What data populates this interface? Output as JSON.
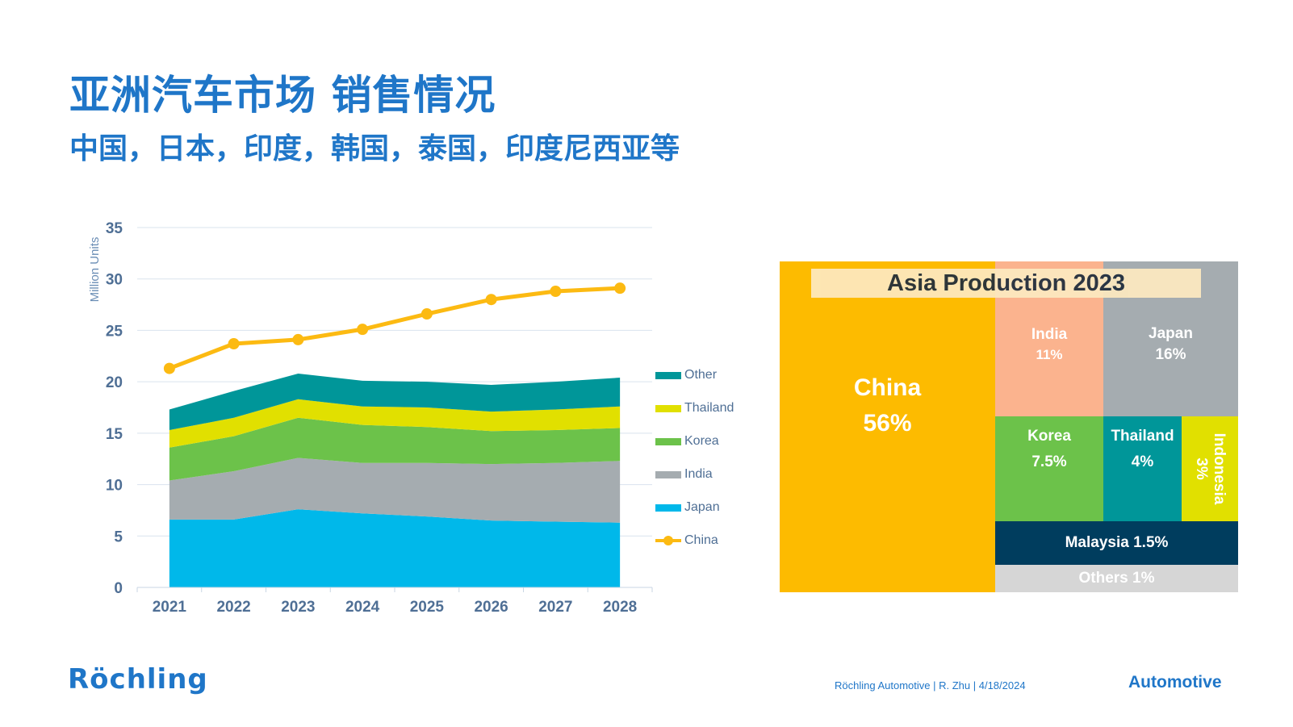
{
  "slide": {
    "title": "亚洲汽车市场 销售情况",
    "subtitle": "中国，日本，印度，韩国，泰国，印度尼西亚等"
  },
  "chart_data": [
    {
      "type": "area",
      "ylabel": "Million Units",
      "ylim": [
        0,
        35
      ],
      "yticks": [
        "0",
        "5",
        "10",
        "15",
        "20",
        "25",
        "30",
        "35"
      ],
      "categories": [
        "2021",
        "2022",
        "2023",
        "2024",
        "2025",
        "2026",
        "2027",
        "2028"
      ],
      "grid": true,
      "legend_position": "right",
      "series": [
        {
          "name": "Japan",
          "kind": "stacked-area",
          "color": "#00b8ea",
          "values": [
            6.6,
            6.6,
            7.6,
            7.2,
            6.9,
            6.5,
            6.4,
            6.3
          ]
        },
        {
          "name": "India",
          "kind": "stacked-area",
          "color": "#a5acb0",
          "values": [
            3.8,
            4.7,
            5.0,
            4.9,
            5.2,
            5.5,
            5.7,
            6.0
          ]
        },
        {
          "name": "Korea",
          "kind": "stacked-area",
          "color": "#6cc24a",
          "values": [
            3.2,
            3.4,
            3.9,
            3.7,
            3.5,
            3.2,
            3.2,
            3.2
          ]
        },
        {
          "name": "Thailand",
          "kind": "stacked-area",
          "color": "#e1e000",
          "values": [
            1.7,
            1.8,
            1.8,
            1.8,
            1.9,
            1.9,
            2.0,
            2.1
          ]
        },
        {
          "name": "Other",
          "kind": "stacked-area",
          "color": "#009699",
          "values": [
            2.0,
            2.6,
            2.5,
            2.5,
            2.5,
            2.6,
            2.7,
            2.8
          ]
        },
        {
          "name": "China",
          "kind": "line",
          "color": "#fcba12",
          "values": [
            21.3,
            23.7,
            24.1,
            25.1,
            26.6,
            28.0,
            28.8,
            29.1
          ]
        }
      ]
    },
    {
      "type": "treemap",
      "title": "Asia Production 2023",
      "cells": [
        {
          "label": "China",
          "share": "56%",
          "color": "#fdbb00"
        },
        {
          "label": "India",
          "share": "11%",
          "color": "#fbb38e"
        },
        {
          "label": "Japan",
          "share": "16%",
          "color": "#a5acb0"
        },
        {
          "label": "Korea",
          "share": "7.5%",
          "color": "#6cc24a"
        },
        {
          "label": "Thailand",
          "share": "4%",
          "color": "#009699"
        },
        {
          "label": "Indonesia",
          "share": "3%",
          "color": "#e1e000"
        },
        {
          "label": "Malaysia 1.5%",
          "share": "",
          "color": "#003d5e"
        },
        {
          "label": "Others 1%",
          "share": "",
          "color": "#d6d6d6"
        }
      ]
    }
  ],
  "footer": {
    "logo": "Röchling",
    "info": "Röchling Automotive | R. Zhu |   4/18/2024",
    "brand": "Automotive"
  }
}
